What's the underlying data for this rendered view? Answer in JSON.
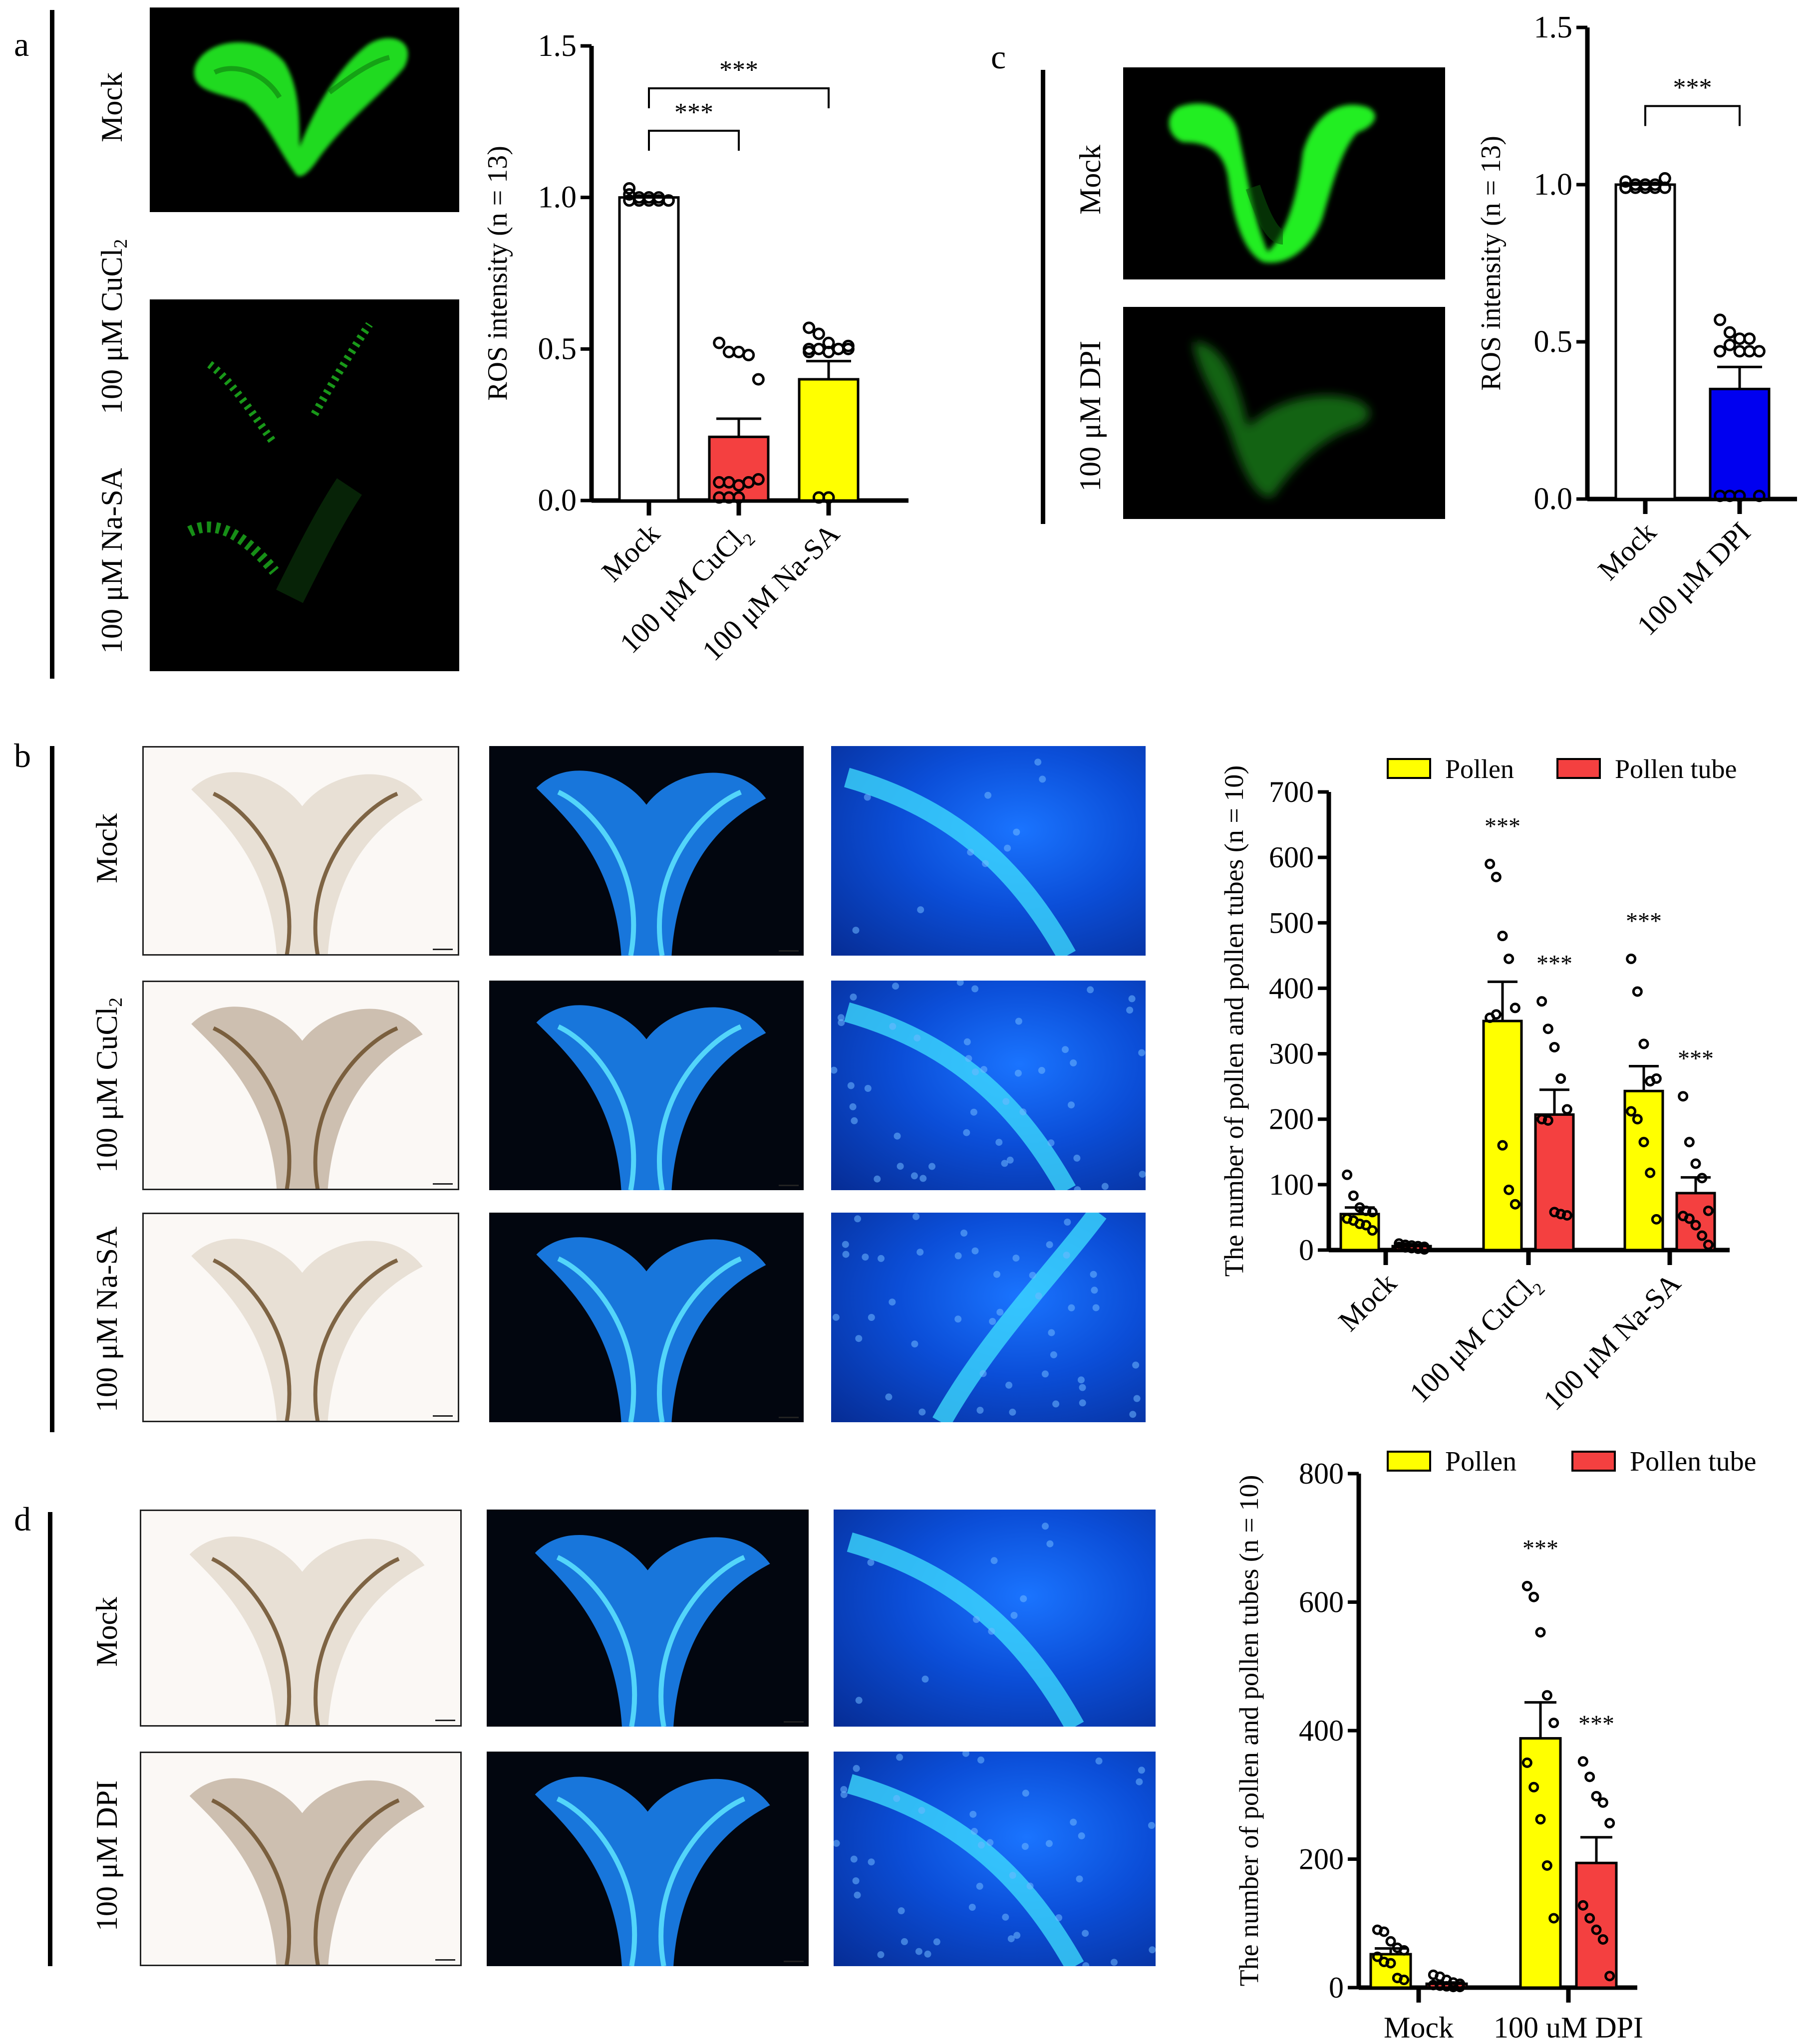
{
  "figure": {
    "panels": {
      "a": {
        "letter": "a",
        "rows": [
          "Mock",
          "100 μM CuCl",
          "100 μM Na-SA"
        ],
        "row_subscripts": [
          "",
          "2",
          ""
        ],
        "image_type": "H2DCFDA ROS fluorescence (green)"
      },
      "b": {
        "letter": "b",
        "rows": [
          "Mock",
          "100 μM CuCl",
          "100 μM Na-SA"
        ],
        "row_subscripts": [
          "",
          "2",
          ""
        ],
        "columns": [
          "bright-field stigma",
          "aniline blue stained stigma",
          "aniline blue stigma close-up"
        ]
      },
      "c": {
        "letter": "c",
        "rows": [
          "Mock",
          "100 μM DPI"
        ],
        "image_type": "H2DCFDA ROS fluorescence (green)"
      },
      "d": {
        "letter": "d",
        "rows": [
          "Mock",
          "100 μM DPI"
        ],
        "columns": [
          "bright-field stigma",
          "aniline blue stained stigma",
          "aniline blue stigma close-up"
        ]
      }
    },
    "colors": {
      "mock_bar": "#ffffff",
      "cucl2_bar": "#f44040",
      "nasa_bar": "#ffff00",
      "dpi_bar": "#0000f0",
      "pollen": "#ffff00",
      "pollen_tube": "#f44040",
      "ros_green": "#2cff2c",
      "aniline_blue": "#1f8fff"
    }
  },
  "chart_data": [
    {
      "id": "chart-a",
      "type": "bar",
      "title": "",
      "xlabel": "",
      "ylabel": "ROS intensity (n = 13)",
      "categories": [
        "Mock",
        "100 μM CuCl2",
        "100 μM Na-SA"
      ],
      "category_labels": [
        {
          "main": "Mock",
          "sub": ""
        },
        {
          "main": "100 μM CuCl",
          "sub": "2"
        },
        {
          "main": "100 μM Na-SA",
          "sub": ""
        }
      ],
      "values": [
        1.0,
        0.21,
        0.4
      ],
      "error_sem": [
        0.0,
        0.06,
        0.06
      ],
      "bar_colors": [
        "#ffffff",
        "#f44040",
        "#ffff00"
      ],
      "points": [
        [
          1.01,
          1.0,
          1.0,
          1.0,
          0.99,
          1.03,
          0.99,
          1.0,
          0.99,
          0.99,
          0.99,
          0.99,
          0.99
        ],
        [
          0.52,
          0.49,
          0.49,
          0.48,
          0.4,
          0.06,
          0.06,
          0.05,
          0.06,
          0.07,
          0.01,
          0.01,
          0.01
        ],
        [
          0.57,
          0.55,
          0.52,
          0.5,
          0.5,
          0.5,
          0.5,
          0.49,
          0.5,
          0.51,
          0.49,
          0.01,
          0.01
        ]
      ],
      "ylim": [
        0,
        1.5
      ],
      "yticks": [
        "0.0",
        "0.5",
        "1.0",
        "1.5"
      ],
      "ytick_values": [
        0,
        0.5,
        1.0,
        1.5
      ],
      "significance": [
        {
          "from": 0,
          "to": 1,
          "label": "***",
          "y": 1.22
        },
        {
          "from": 0,
          "to": 2,
          "label": "***",
          "y": 1.36
        }
      ],
      "grid": false,
      "legend": "none"
    },
    {
      "id": "chart-c",
      "type": "bar",
      "title": "",
      "xlabel": "",
      "ylabel": "ROS intensity (n = 13)",
      "categories": [
        "Mock",
        "100 μM DPI"
      ],
      "category_labels": [
        {
          "main": "Mock",
          "sub": ""
        },
        {
          "main": "100 μM DPI",
          "sub": ""
        }
      ],
      "values": [
        1.0,
        0.35
      ],
      "error_sem": [
        0.0,
        0.07
      ],
      "bar_colors": [
        "#ffffff",
        "#0000f0"
      ],
      "points": [
        [
          1.01,
          1.0,
          0.99,
          1.0,
          1.02,
          0.99,
          1.0,
          1.0,
          0.99,
          0.99,
          0.99,
          0.99,
          1.0
        ],
        [
          0.57,
          0.53,
          0.51,
          0.51,
          0.47,
          0.47,
          0.49,
          0.47,
          0.47,
          0.01,
          0.01,
          0.01,
          0.01
        ]
      ],
      "ylim": [
        0,
        1.5
      ],
      "yticks": [
        "0.0",
        "0.5",
        "1.0",
        "1.5"
      ],
      "ytick_values": [
        0,
        0.5,
        1.0,
        1.5
      ],
      "significance": [
        {
          "from": 0,
          "to": 1,
          "label": "***",
          "y": 1.25
        }
      ],
      "grid": false,
      "legend": "none"
    },
    {
      "id": "chart-b",
      "type": "bar",
      "title": "",
      "xlabel": "",
      "ylabel": "The number of pollen and pollen tubes (n = 10)",
      "categories": [
        "Mock",
        "100 μM CuCl2",
        "100 μM Na-SA"
      ],
      "category_labels": [
        {
          "main": "Mock",
          "sub": ""
        },
        {
          "main": "100 μM CuCl",
          "sub": "2"
        },
        {
          "main": "100 μM Na-SA",
          "sub": ""
        }
      ],
      "series": [
        {
          "name": "Pollen",
          "color": "#ffff00",
          "values": [
            55,
            350,
            243
          ],
          "error_sem": [
            10,
            60,
            38
          ],
          "points": [
            [
              115,
              83,
              65,
              60,
              58,
              48,
              45,
              40,
              38,
              30
            ],
            [
              590,
              570,
              480,
              445,
              370,
              355,
              360,
              160,
              92,
              70
            ],
            [
              445,
              395,
              315,
              258,
              262,
              212,
              200,
              165,
              118,
              47
            ]
          ],
          "significance": [
            "",
            "***",
            "***"
          ]
        },
        {
          "name": "Pollen tube",
          "color": "#f44040",
          "values": [
            6,
            207,
            87
          ],
          "error_sem": [
            2,
            38,
            24
          ],
          "points": [
            [
              10,
              8,
              7,
              6,
              5,
              5,
              4,
              3,
              2,
              1
            ],
            [
              380,
              338,
              310,
              262,
              215,
              200,
              198,
              58,
              55,
              53
            ],
            [
              235,
              165,
              132,
              110,
              60,
              52,
              48,
              38,
              22,
              8
            ]
          ],
          "significance": [
            "",
            "***",
            "***"
          ]
        }
      ],
      "ylim": [
        0,
        700
      ],
      "yticks": [
        "0",
        "100",
        "200",
        "300",
        "400",
        "500",
        "600",
        "700"
      ],
      "ytick_values": [
        0,
        100,
        200,
        300,
        400,
        500,
        600,
        700
      ],
      "grid": false,
      "legend": "top"
    },
    {
      "id": "chart-d",
      "type": "bar",
      "title": "",
      "xlabel": "",
      "ylabel": "The number of pollen and pollen tubes (n = 10)",
      "categories": [
        "Mock",
        "100 uM DPI"
      ],
      "category_labels": [
        {
          "main": "Mock",
          "sub": ""
        },
        {
          "main": "100 uM DPI",
          "sub": ""
        }
      ],
      "series": [
        {
          "name": "Pollen",
          "color": "#ffff00",
          "values": [
            52,
            388
          ],
          "error_sem": [
            9,
            56
          ],
          "points": [
            [
              90,
              87,
              72,
              62,
              58,
              48,
              40,
              38,
              15,
              12
            ],
            [
              625,
              608,
              553,
              455,
              412,
              350,
              312,
              262,
              190,
              108
            ]
          ],
          "significance": [
            "",
            "***"
          ]
        },
        {
          "name": "Pollen tube",
          "color": "#f44040",
          "values": [
            6,
            194
          ],
          "error_sem": [
            2,
            40
          ],
          "points": [
            [
              20,
              17,
              12,
              8,
              6,
              4,
              3,
              2,
              1,
              1
            ],
            [
              352,
              328,
              298,
              288,
              256,
              128,
              108,
              90,
              75,
              18
            ]
          ],
          "significance": [
            "",
            "***"
          ]
        }
      ],
      "ylim": [
        0,
        800
      ],
      "yticks": [
        "0",
        "200",
        "400",
        "600",
        "800"
      ],
      "ytick_values": [
        0,
        200,
        400,
        600,
        800
      ],
      "grid": false,
      "legend": "top"
    }
  ]
}
